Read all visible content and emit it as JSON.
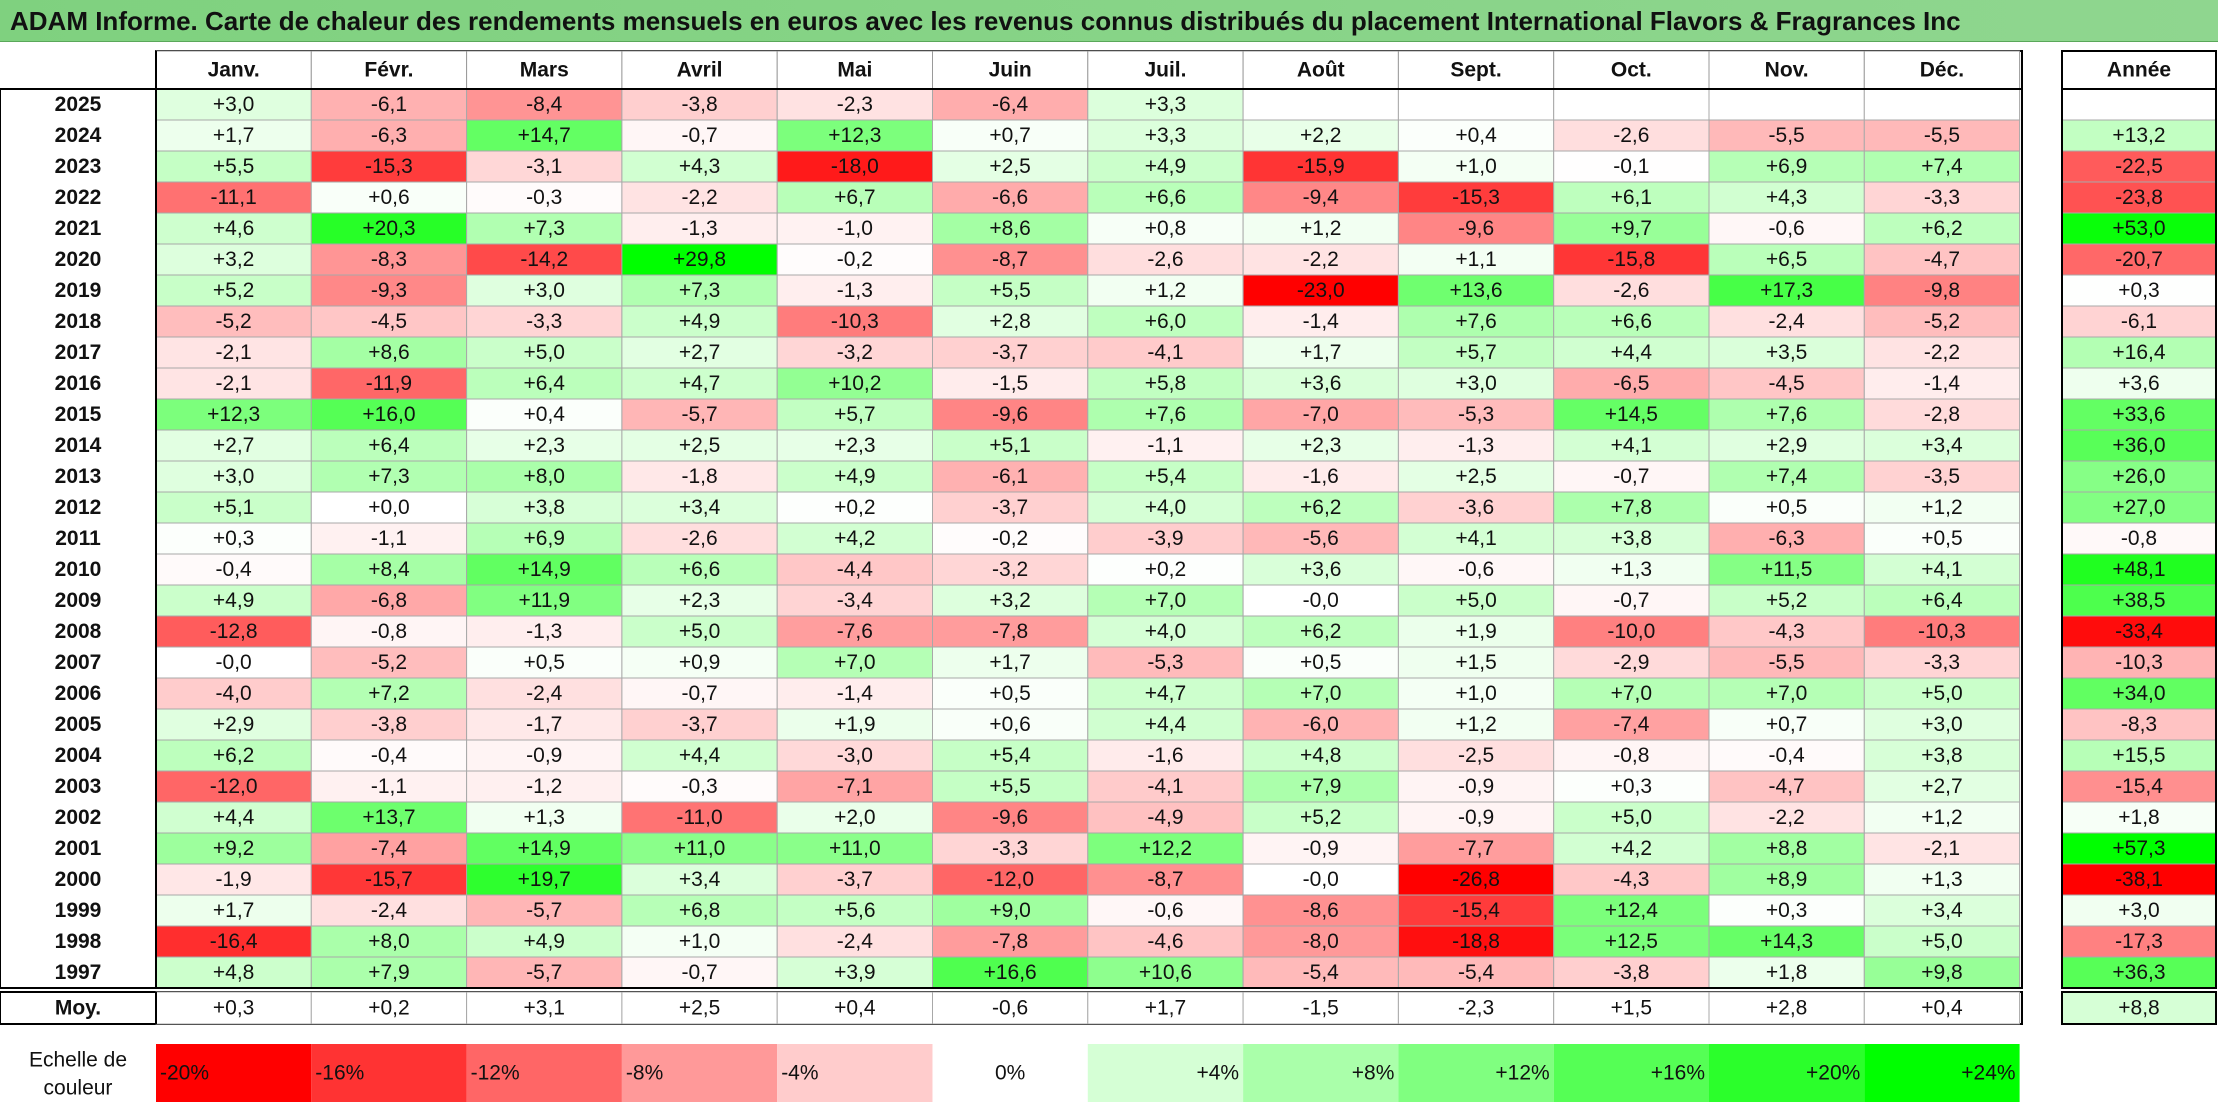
{
  "title": "ADAM Informe. Carte de chaleur des rendements mensuels en euros avec les revenus connus distribués du placement International Flavors & Fragrances Inc",
  "chart_data": {
    "type": "heatmap",
    "columns": [
      "Janv.",
      "Févr.",
      "Mars",
      "Avril",
      "Mai",
      "Juin",
      "Juil.",
      "Août",
      "Sept.",
      "Oct.",
      "Nov.",
      "Déc."
    ],
    "year_column_label": "Année",
    "rows": [
      {
        "year": "2025",
        "values": [
          "+3,0",
          "-6,1",
          "-8,4",
          "-3,8",
          "-2,3",
          "-6,4",
          "+3,3",
          "",
          "",
          "",
          "",
          ""
        ],
        "annual": ""
      },
      {
        "year": "2024",
        "values": [
          "+1,7",
          "-6,3",
          "+14,7",
          "-0,7",
          "+12,3",
          "+0,7",
          "+3,3",
          "+2,2",
          "+0,4",
          "-2,6",
          "-5,5",
          "-5,5"
        ],
        "annual": "+13,2"
      },
      {
        "year": "2023",
        "values": [
          "+5,5",
          "-15,3",
          "-3,1",
          "+4,3",
          "-18,0",
          "+2,5",
          "+4,9",
          "-15,9",
          "+1,0",
          "-0,1",
          "+6,9",
          "+7,4"
        ],
        "annual": "-22,5"
      },
      {
        "year": "2022",
        "values": [
          "-11,1",
          "+0,6",
          "-0,3",
          "-2,2",
          "+6,7",
          "-6,6",
          "+6,6",
          "-9,4",
          "-15,3",
          "+6,1",
          "+4,3",
          "-3,3"
        ],
        "annual": "-23,8"
      },
      {
        "year": "2021",
        "values": [
          "+4,6",
          "+20,3",
          "+7,3",
          "-1,3",
          "-1,0",
          "+8,6",
          "+0,8",
          "+1,2",
          "-9,6",
          "+9,7",
          "-0,6",
          "+6,2"
        ],
        "annual": "+53,0"
      },
      {
        "year": "2020",
        "values": [
          "+3,2",
          "-8,3",
          "-14,2",
          "+29,8",
          "-0,2",
          "-8,7",
          "-2,6",
          "-2,2",
          "+1,1",
          "-15,8",
          "+6,5",
          "-4,7"
        ],
        "annual": "-20,7"
      },
      {
        "year": "2019",
        "values": [
          "+5,2",
          "-9,3",
          "+3,0",
          "+7,3",
          "-1,3",
          "+5,5",
          "+1,2",
          "-23,0",
          "+13,6",
          "-2,6",
          "+17,3",
          "-9,8"
        ],
        "annual": "+0,3"
      },
      {
        "year": "2018",
        "values": [
          "-5,2",
          "-4,5",
          "-3,3",
          "+4,9",
          "-10,3",
          "+2,8",
          "+6,0",
          "-1,4",
          "+7,6",
          "+6,6",
          "-2,4",
          "-5,2"
        ],
        "annual": "-6,1"
      },
      {
        "year": "2017",
        "values": [
          "-2,1",
          "+8,6",
          "+5,0",
          "+2,7",
          "-3,2",
          "-3,7",
          "-4,1",
          "+1,7",
          "+5,7",
          "+4,4",
          "+3,5",
          "-2,2"
        ],
        "annual": "+16,4"
      },
      {
        "year": "2016",
        "values": [
          "-2,1",
          "-11,9",
          "+6,4",
          "+4,7",
          "+10,2",
          "-1,5",
          "+5,8",
          "+3,6",
          "+3,0",
          "-6,5",
          "-4,5",
          "-1,4"
        ],
        "annual": "+3,6"
      },
      {
        "year": "2015",
        "values": [
          "+12,3",
          "+16,0",
          "+0,4",
          "-5,7",
          "+5,7",
          "-9,6",
          "+7,6",
          "-7,0",
          "-5,3",
          "+14,5",
          "+7,6",
          "-2,8"
        ],
        "annual": "+33,6"
      },
      {
        "year": "2014",
        "values": [
          "+2,7",
          "+6,4",
          "+2,3",
          "+2,5",
          "+2,3",
          "+5,1",
          "-1,1",
          "+2,3",
          "-1,3",
          "+4,1",
          "+2,9",
          "+3,4"
        ],
        "annual": "+36,0"
      },
      {
        "year": "2013",
        "values": [
          "+3,0",
          "+7,3",
          "+8,0",
          "-1,8",
          "+4,9",
          "-6,1",
          "+5,4",
          "-1,6",
          "+2,5",
          "-0,7",
          "+7,4",
          "-3,5"
        ],
        "annual": "+26,0"
      },
      {
        "year": "2012",
        "values": [
          "+5,1",
          "+0,0",
          "+3,8",
          "+3,4",
          "+0,2",
          "-3,7",
          "+4,0",
          "+6,2",
          "-3,6",
          "+7,8",
          "+0,5",
          "+1,2"
        ],
        "annual": "+27,0"
      },
      {
        "year": "2011",
        "values": [
          "+0,3",
          "-1,1",
          "+6,9",
          "-2,6",
          "+4,2",
          "-0,2",
          "-3,9",
          "-5,6",
          "+4,1",
          "+3,8",
          "-6,3",
          "+0,5"
        ],
        "annual": "-0,8"
      },
      {
        "year": "2010",
        "values": [
          "-0,4",
          "+8,4",
          "+14,9",
          "+6,6",
          "-4,4",
          "-3,2",
          "+0,2",
          "+3,6",
          "-0,6",
          "+1,3",
          "+11,5",
          "+4,1"
        ],
        "annual": "+48,1"
      },
      {
        "year": "2009",
        "values": [
          "+4,9",
          "-6,8",
          "+11,9",
          "+2,3",
          "-3,4",
          "+3,2",
          "+7,0",
          "-0,0",
          "+5,0",
          "-0,7",
          "+5,2",
          "+6,4"
        ],
        "annual": "+38,5"
      },
      {
        "year": "2008",
        "values": [
          "-12,8",
          "-0,8",
          "-1,3",
          "+5,0",
          "-7,6",
          "-7,8",
          "+4,0",
          "+6,2",
          "+1,9",
          "-10,0",
          "-4,3",
          "-10,3"
        ],
        "annual": "-33,4"
      },
      {
        "year": "2007",
        "values": [
          "-0,0",
          "-5,2",
          "+0,5",
          "+0,9",
          "+7,0",
          "+1,7",
          "-5,3",
          "+0,5",
          "+1,5",
          "-2,9",
          "-5,5",
          "-3,3"
        ],
        "annual": "-10,3"
      },
      {
        "year": "2006",
        "values": [
          "-4,0",
          "+7,2",
          "-2,4",
          "-0,7",
          "-1,4",
          "+0,5",
          "+4,7",
          "+7,0",
          "+1,0",
          "+7,0",
          "+7,0",
          "+5,0"
        ],
        "annual": "+34,0"
      },
      {
        "year": "2005",
        "values": [
          "+2,9",
          "-3,8",
          "-1,7",
          "-3,7",
          "+1,9",
          "+0,6",
          "+4,4",
          "-6,0",
          "+1,2",
          "-7,4",
          "+0,7",
          "+3,0"
        ],
        "annual": "-8,3"
      },
      {
        "year": "2004",
        "values": [
          "+6,2",
          "-0,4",
          "-0,9",
          "+4,4",
          "-3,0",
          "+5,4",
          "-1,6",
          "+4,8",
          "-2,5",
          "-0,8",
          "-0,4",
          "+3,8"
        ],
        "annual": "+15,5"
      },
      {
        "year": "2003",
        "values": [
          "-12,0",
          "-1,1",
          "-1,2",
          "-0,3",
          "-7,1",
          "+5,5",
          "-4,1",
          "+7,9",
          "-0,9",
          "+0,3",
          "-4,7",
          "+2,7"
        ],
        "annual": "-15,4"
      },
      {
        "year": "2002",
        "values": [
          "+4,4",
          "+13,7",
          "+1,3",
          "-11,0",
          "+2,0",
          "-9,6",
          "-4,9",
          "+5,2",
          "-0,9",
          "+5,0",
          "-2,2",
          "+1,2"
        ],
        "annual": "+1,8"
      },
      {
        "year": "2001",
        "values": [
          "+9,2",
          "-7,4",
          "+14,9",
          "+11,0",
          "+11,0",
          "-3,3",
          "+12,2",
          "-0,9",
          "-7,7",
          "+4,2",
          "+8,8",
          "-2,1"
        ],
        "annual": "+57,3"
      },
      {
        "year": "2000",
        "values": [
          "-1,9",
          "-15,7",
          "+19,7",
          "+3,4",
          "-3,7",
          "-12,0",
          "-8,7",
          "-0,0",
          "-26,8",
          "-4,3",
          "+8,9",
          "+1,3"
        ],
        "annual": "-38,1"
      },
      {
        "year": "1999",
        "values": [
          "+1,7",
          "-2,4",
          "-5,7",
          "+6,8",
          "+5,6",
          "+9,0",
          "-0,6",
          "-8,6",
          "-15,4",
          "+12,4",
          "+0,3",
          "+3,4"
        ],
        "annual": "+3,0"
      },
      {
        "year": "1998",
        "values": [
          "-16,4",
          "+8,0",
          "+4,9",
          "+1,0",
          "-2,4",
          "-7,8",
          "-4,6",
          "-8,0",
          "-18,8",
          "+12,5",
          "+14,3",
          "+5,0"
        ],
        "annual": "-17,3"
      },
      {
        "year": "1997",
        "values": [
          "+4,8",
          "+7,9",
          "-5,7",
          "-0,7",
          "+3,9",
          "+16,6",
          "+10,6",
          "-5,4",
          "-5,4",
          "-3,8",
          "+1,8",
          "+9,8"
        ],
        "annual": "+36,3"
      }
    ],
    "average": {
      "label": "Moy.",
      "values": [
        "+0,3",
        "+0,2",
        "+3,1",
        "+2,5",
        "+0,4",
        "-0,6",
        "+1,7",
        "-1,5",
        "-2,3",
        "+1,5",
        "+2,8",
        "+0,4"
      ],
      "annual": "+8,8"
    },
    "scale": {
      "label_line1": "Echelle de",
      "label_line2": "couleur",
      "steps": [
        "-20%",
        "-16%",
        "-12%",
        "-8%",
        "-4%",
        "0%",
        "+4%",
        "+8%",
        "+12%",
        "+16%",
        "+20%",
        "+24%"
      ]
    },
    "colors": {
      "negative": "#ff0000",
      "neutral": "#ffffff",
      "positive": "#00ff00"
    }
  }
}
